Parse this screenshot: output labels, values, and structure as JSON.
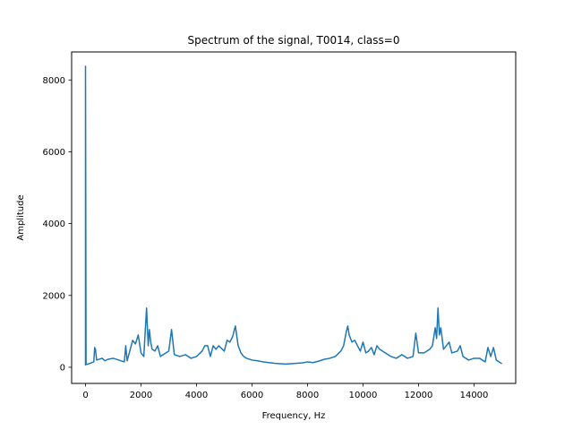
{
  "chart_data": {
    "type": "line",
    "title": "Spectrum of the signal, T0014, class=0",
    "xlabel": "Frequency, Hz",
    "ylabel": "Amplitude",
    "xlim": [
      -500,
      15500
    ],
    "ylim": [
      -450,
      8780
    ],
    "xticks": [
      0,
      2000,
      4000,
      6000,
      8000,
      10000,
      12000,
      14000
    ],
    "yticks": [
      0,
      2000,
      4000,
      6000,
      8000
    ],
    "grid": false,
    "series": [
      {
        "color": "#1f77b4",
        "x": [
          0,
          0,
          20,
          100,
          300,
          330,
          360,
          400,
          600,
          700,
          800,
          1000,
          1200,
          1400,
          1450,
          1500,
          1700,
          1800,
          1900,
          2000,
          2100,
          2200,
          2230,
          2260,
          2300,
          2350,
          2400,
          2500,
          2600,
          2700,
          2800,
          3000,
          3100,
          3200,
          3400,
          3600,
          3800,
          4000,
          4200,
          4300,
          4400,
          4500,
          4600,
          4700,
          4800,
          5000,
          5100,
          5200,
          5300,
          5400,
          5500,
          5600,
          5700,
          5800,
          6000,
          6200,
          6400,
          6600,
          6800,
          7000,
          7200,
          7400,
          7600,
          7800,
          8000,
          8200,
          8400,
          8600,
          8800,
          9000,
          9200,
          9300,
          9400,
          9450,
          9500,
          9600,
          9700,
          9800,
          9900,
          10000,
          10100,
          10200,
          10300,
          10400,
          10500,
          10600,
          10700,
          10800,
          11000,
          11200,
          11400,
          11600,
          11800,
          11900,
          12000,
          12200,
          12400,
          12500,
          12600,
          12650,
          12700,
          12750,
          12800,
          12850,
          12900,
          13000,
          13100,
          13200,
          13400,
          13500,
          13600,
          13800,
          14000,
          14200,
          14400,
          14500,
          14600,
          14700,
          14800,
          15000
        ],
        "y": [
          50,
          8380,
          80,
          90,
          150,
          550,
          500,
          200,
          250,
          180,
          220,
          250,
          200,
          150,
          600,
          180,
          750,
          650,
          900,
          400,
          300,
          1650,
          1100,
          600,
          1050,
          700,
          500,
          450,
          600,
          300,
          350,
          450,
          1050,
          350,
          300,
          350,
          250,
          300,
          450,
          600,
          600,
          300,
          600,
          500,
          600,
          450,
          750,
          700,
          850,
          1150,
          600,
          400,
          300,
          250,
          200,
          180,
          150,
          130,
          110,
          100,
          90,
          100,
          110,
          120,
          150,
          130,
          170,
          220,
          250,
          300,
          450,
          600,
          1000,
          1150,
          900,
          700,
          750,
          600,
          450,
          700,
          400,
          450,
          550,
          350,
          600,
          500,
          450,
          400,
          300,
          250,
          350,
          250,
          300,
          950,
          400,
          400,
          500,
          600,
          1100,
          800,
          1650,
          900,
          1100,
          800,
          500,
          600,
          700,
          400,
          450,
          600,
          300,
          200,
          250,
          250,
          150,
          550,
          300,
          550,
          200,
          100
        ]
      }
    ]
  }
}
